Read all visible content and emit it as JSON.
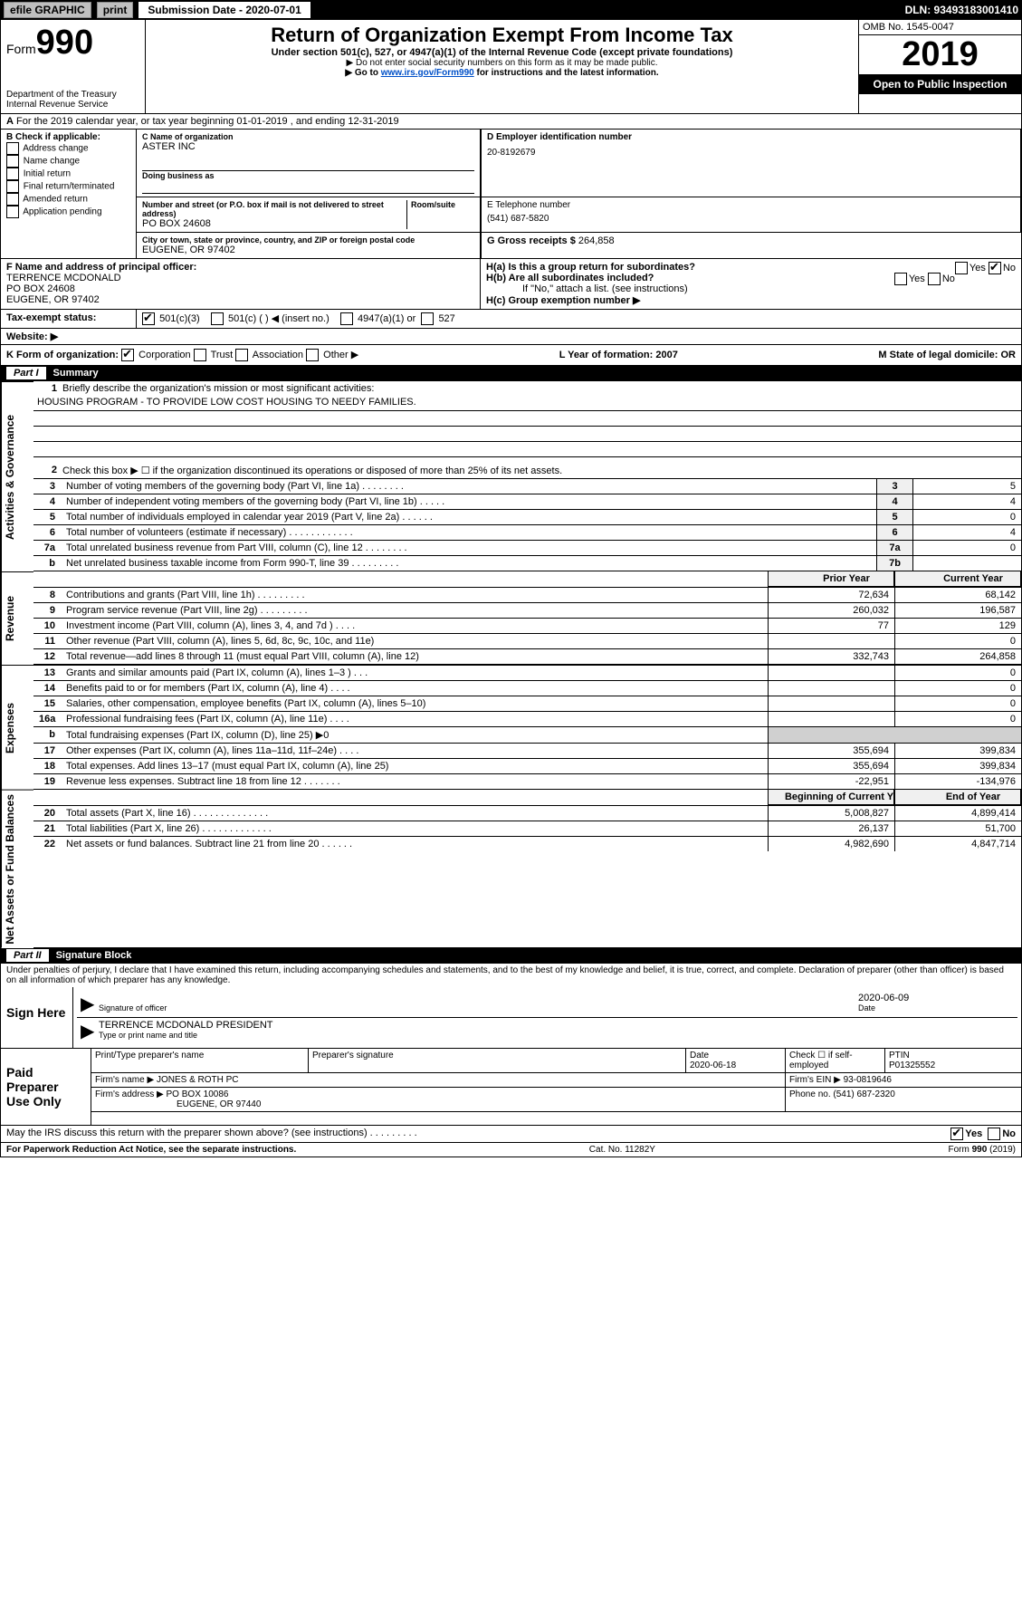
{
  "topbar": {
    "efile": "efile GRAPHIC",
    "print": "print",
    "subdate_label": "Submission Date - 2020-07-01",
    "dln": "DLN: 93493183001410"
  },
  "header": {
    "form_word": "Form",
    "form_num": "990",
    "dept": "Department of the Treasury",
    "irs": "Internal Revenue Service",
    "title": "Return of Organization Exempt From Income Tax",
    "sub1": "Under section 501(c), 527, or 4947(a)(1) of the Internal Revenue Code (except private foundations)",
    "sub2": "▶ Do not enter social security numbers on this form as it may be made public.",
    "sub3_pre": "▶ Go to ",
    "sub3_link": "www.irs.gov/Form990",
    "sub3_post": " for instructions and the latest information.",
    "omb": "OMB No. 1545-0047",
    "year": "2019",
    "open": "Open to Public Inspection"
  },
  "rowA": {
    "text": "For the 2019 calendar year, or tax year beginning 01-01-2019     , and ending 12-31-2019"
  },
  "B": {
    "label": "B Check if applicable:",
    "addr": "Address change",
    "name": "Name change",
    "init": "Initial return",
    "final": "Final return/terminated",
    "amend": "Amended return",
    "app": "Application pending"
  },
  "C": {
    "name_label": "C Name of organization",
    "name": "ASTER INC",
    "dba_label": "Doing business as",
    "street_label": "Number and street (or P.O. box if mail is not delivered to street address)",
    "room_label": "Room/suite",
    "street": "PO BOX 24608",
    "city_label": "City or town, state or province, country, and ZIP or foreign postal code",
    "city": "EUGENE, OR  97402"
  },
  "D": {
    "label": "D Employer identification number",
    "val": "20-8192679"
  },
  "E": {
    "label": "E Telephone number",
    "val": "(541) 687-5820"
  },
  "G": {
    "label": "G Gross receipts $",
    "val": "264,858"
  },
  "F": {
    "label": "F  Name and address of principal officer:",
    "name": "TERRENCE MCDONALD",
    "street": "PO BOX 24608",
    "city": "EUGENE, OR  97402"
  },
  "H": {
    "a": "H(a)  Is this a group return for subordinates?",
    "b": "H(b)  Are all subordinates included?",
    "bNote": "If \"No,\" attach a list. (see instructions)",
    "c": "H(c)  Group exemption number ▶",
    "yes": "Yes",
    "no": "No"
  },
  "I": {
    "label": "Tax-exempt status:",
    "c3": "501(c)(3)",
    "c": "501(c) (   ) ◀ (insert no.)",
    "a1": "4947(a)(1) or",
    "527": "527"
  },
  "J": {
    "label": "Website: ▶"
  },
  "K": {
    "label": "K Form of organization:",
    "corp": "Corporation",
    "trust": "Trust",
    "assoc": "Association",
    "other": "Other ▶",
    "L": "L Year of formation: 2007",
    "M": "M State of legal domicile: OR"
  },
  "part1": {
    "hdr": "Summary",
    "q1": "Briefly describe the organization's mission or most significant activities:",
    "mission": "HOUSING PROGRAM - TO PROVIDE LOW COST HOUSING TO NEEDY FAMILIES.",
    "q2": "Check this box ▶ ☐  if the organization discontinued its operations or disposed of more than 25% of its net assets.",
    "rows": [
      {
        "n": "3",
        "t": "Number of voting members of the governing body (Part VI, line 1a)   .    .    .    .    .    .    .    .",
        "b": "3",
        "v": "5"
      },
      {
        "n": "4",
        "t": "Number of independent voting members of the governing body (Part VI, line 1b)   .    .    .    .    .",
        "b": "4",
        "v": "4"
      },
      {
        "n": "5",
        "t": "Total number of individuals employed in calendar year 2019 (Part V, line 2a)   .    .    .    .    .    .",
        "b": "5",
        "v": "0"
      },
      {
        "n": "6",
        "t": "Total number of volunteers (estimate if necessary)   .    .    .    .    .    .    .    .    .    .    .    .",
        "b": "6",
        "v": "4"
      },
      {
        "n": "7a",
        "t": "Total unrelated business revenue from Part VIII, column (C), line 12   .    .    .    .    .    .    .    .",
        "b": "7a",
        "v": "0"
      },
      {
        "n": "b",
        "t": "Net unrelated business taxable income from Form 990-T, line 39   .    .    .    .    .    .    .    .    .",
        "b": "7b",
        "v": ""
      }
    ],
    "colPrior": "Prior Year",
    "colCurr": "Current Year",
    "rev": [
      {
        "n": "8",
        "t": "Contributions and grants (Part VIII, line 1h)   .    .    .    .    .    .    .    .    .",
        "p": "72,634",
        "c": "68,142"
      },
      {
        "n": "9",
        "t": "Program service revenue (Part VIII, line 2g)   .    .    .    .    .    .    .    .    .",
        "p": "260,032",
        "c": "196,587"
      },
      {
        "n": "10",
        "t": "Investment income (Part VIII, column (A), lines 3, 4, and 7d )   .    .    .    .",
        "p": "77",
        "c": "129"
      },
      {
        "n": "11",
        "t": "Other revenue (Part VIII, column (A), lines 5, 6d, 8c, 9c, 10c, and 11e)",
        "p": "",
        "c": "0"
      },
      {
        "n": "12",
        "t": "Total revenue—add lines 8 through 11 (must equal Part VIII, column (A), line 12)",
        "p": "332,743",
        "c": "264,858"
      }
    ],
    "exp": [
      {
        "n": "13",
        "t": "Grants and similar amounts paid (Part IX, column (A), lines 1–3 )   .    .    .",
        "p": "",
        "c": "0"
      },
      {
        "n": "14",
        "t": "Benefits paid to or for members (Part IX, column (A), line 4)   .    .    .    .",
        "p": "",
        "c": "0"
      },
      {
        "n": "15",
        "t": "Salaries, other compensation, employee benefits (Part IX, column (A), lines 5–10)",
        "p": "",
        "c": "0"
      },
      {
        "n": "16a",
        "t": "Professional fundraising fees (Part IX, column (A), line 11e)   .    .    .    .",
        "p": "",
        "c": "0"
      },
      {
        "n": "b",
        "t": "Total fundraising expenses (Part IX, column (D), line 25) ▶0",
        "p": null,
        "c": null
      },
      {
        "n": "17",
        "t": "Other expenses (Part IX, column (A), lines 11a–11d, 11f–24e)   .    .    .    .",
        "p": "355,694",
        "c": "399,834"
      },
      {
        "n": "18",
        "t": "Total expenses. Add lines 13–17 (must equal Part IX, column (A), line 25)",
        "p": "355,694",
        "c": "399,834"
      },
      {
        "n": "19",
        "t": "Revenue less expenses. Subtract line 18 from line 12  .    .    .    .    .    .    .",
        "p": "-22,951",
        "c": "-134,976"
      }
    ],
    "colBeg": "Beginning of Current Year",
    "colEnd": "End of Year",
    "net": [
      {
        "n": "20",
        "t": "Total assets (Part X, line 16)   .    .    .    .    .    .    .    .    .    .    .    .    .    .",
        "p": "5,008,827",
        "c": "4,899,414"
      },
      {
        "n": "21",
        "t": "Total liabilities (Part X, line 26)   .    .    .    .    .    .    .    .    .    .    .    .    .",
        "p": "26,137",
        "c": "51,700"
      },
      {
        "n": "22",
        "t": "Net assets or fund balances. Subtract line 21 from line 20   .    .    .    .    .    .",
        "p": "4,982,690",
        "c": "4,847,714"
      }
    ],
    "side1": "Activities & Governance",
    "side2": "Revenue",
    "side3": "Expenses",
    "side4": "Net Assets or Fund Balances"
  },
  "part2": {
    "hdr": "Signature Block",
    "penalty": "Under penalties of perjury, I declare that I have examined this return, including accompanying schedules and statements, and to the best of my knowledge and belief, it is true, correct, and complete. Declaration of preparer (other than officer) is based on all information of which preparer has any knowledge.",
    "sign": "Sign Here",
    "sig_of": "Signature of officer",
    "date": "2020-06-09",
    "date_lab": "Date",
    "name": "TERRENCE MCDONALD  PRESIDENT",
    "name_lab": "Type or print name and title",
    "paid": "Paid Preparer Use Only",
    "p_name_lab": "Print/Type preparer's name",
    "p_sig_lab": "Preparer's signature",
    "p_date_lab": "Date",
    "p_date": "2020-06-18",
    "p_check_lab": "Check ☐ if self-employed",
    "ptin_lab": "PTIN",
    "ptin": "P01325552",
    "firm_lab": "Firm's name     ▶",
    "firm": "JONES & ROTH PC",
    "ein_lab": "Firm's EIN ▶",
    "ein": "93-0819646",
    "addr_lab": "Firm's address ▶",
    "addr": "PO BOX 10086",
    "addr2": "EUGENE, OR  97440",
    "phone_lab": "Phone no.",
    "phone": "(541) 687-2320",
    "may": "May the IRS discuss this return with the preparer shown above? (see instructions)   .    .    .    .    .    .    .    .    .",
    "may_yes": "Yes",
    "may_no": "No"
  },
  "footer": {
    "pra": "For Paperwork Reduction Act Notice, see the separate instructions.",
    "cat": "Cat. No. 11282Y",
    "form": "Form 990 (2019)"
  }
}
